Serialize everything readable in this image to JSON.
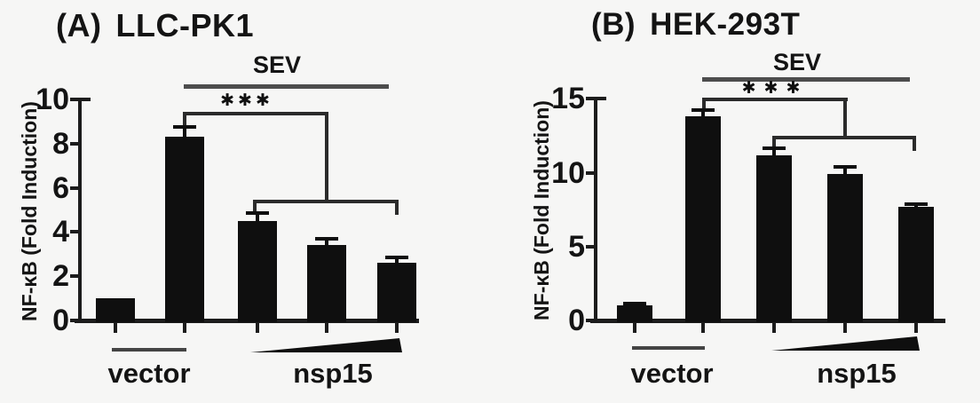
{
  "figure": {
    "background": "#f6f6f5",
    "bar_color": "#0f0f0f",
    "axis_color": "#1c1c1c",
    "bracket_color": "#2b2b2b",
    "sev_line_color": "#4d4d4d"
  },
  "panels": [
    {
      "panel_label": "(A)",
      "cell_line": "LLC-PK1",
      "sev_label": "SEV",
      "significance_label": "✱✱✱",
      "ylabel": "NF-κB (Fold Induction)",
      "group_labels": {
        "vector": "vector",
        "nsp15": "nsp15"
      }
    },
    {
      "panel_label": "(B)",
      "cell_line": "HEK-293T",
      "sev_label": "SEV",
      "significance_label": "✱✱✱",
      "ylabel": "NF-κB (Fold Induction)",
      "group_labels": {
        "vector": "vector",
        "nsp15": "nsp15"
      }
    }
  ],
  "chart_data": [
    {
      "type": "bar",
      "title": "(A) LLC-PK1",
      "ylabel": "NF-κB (Fold Induction)",
      "ylim": [
        0,
        10
      ],
      "yticks": [
        0,
        2,
        4,
        6,
        8,
        10
      ],
      "categories": [
        "vector",
        "vector + SEV",
        "nsp15 dose 1 + SEV",
        "nsp15 dose 2 + SEV",
        "nsp15 dose 3 + SEV"
      ],
      "values": [
        1.0,
        8.3,
        4.5,
        3.4,
        2.6
      ],
      "errors": [
        0,
        0.45,
        0.35,
        0.3,
        0.25
      ],
      "annotations": [
        "SEV line spans bars 2-5",
        "*** bracket compares bar 2 vs bars 3-5",
        "wedge = increasing nsp15 dose under bars 3-5",
        "grid off"
      ]
    },
    {
      "type": "bar",
      "title": "(B) HEK-293T",
      "ylabel": "NF-κB (Fold Induction)",
      "ylim": [
        0,
        15
      ],
      "yticks": [
        0,
        5,
        10,
        15
      ],
      "categories": [
        "vector",
        "vector + SEV",
        "nsp15 dose 1 + SEV",
        "nsp15 dose 2 + SEV",
        "nsp15 dose 3 + SEV"
      ],
      "values": [
        1.0,
        13.8,
        11.2,
        9.9,
        7.7
      ],
      "errors": [
        0.15,
        0.45,
        0.45,
        0.5,
        0.15
      ],
      "annotations": [
        "SEV line spans bars 2-5",
        "*** bracket compares bar 2 vs bars 3-5",
        "wedge = increasing nsp15 dose under bars 3-5",
        "grid off"
      ]
    }
  ]
}
